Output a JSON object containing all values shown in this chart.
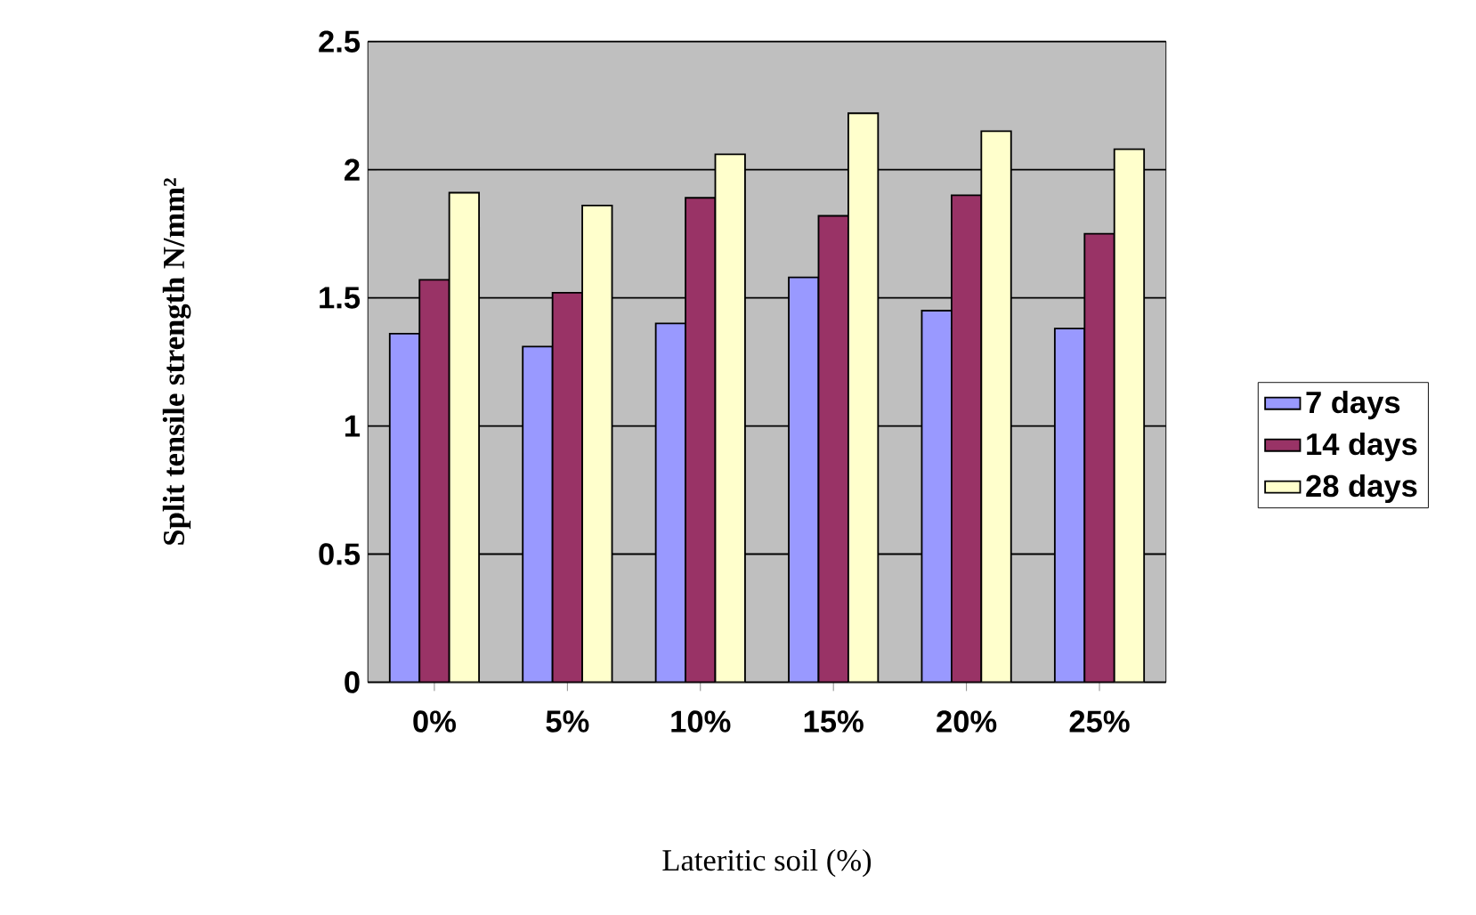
{
  "chart_data": {
    "type": "bar",
    "xlabel": "Lateritic soil (%)",
    "ylabel": "Split tensile  strength N/mm²",
    "categories": [
      "0%",
      "5%",
      "10%",
      "15%",
      "20%",
      "25%"
    ],
    "series": [
      {
        "name": "7 days",
        "color": "#9999ff",
        "values": [
          1.36,
          1.31,
          1.4,
          1.58,
          1.45,
          1.38
        ]
      },
      {
        "name": "14 days",
        "color": "#993366",
        "values": [
          1.57,
          1.52,
          1.89,
          1.82,
          1.9,
          1.75
        ]
      },
      {
        "name": "28 days",
        "color": "#ffffcc",
        "values": [
          1.91,
          1.86,
          2.06,
          2.22,
          2.15,
          2.08
        ]
      }
    ],
    "ylim": [
      0,
      2.5
    ],
    "yticks": [
      0,
      0.5,
      1,
      1.5,
      2,
      2.5
    ],
    "grid": "y",
    "legend": "right"
  }
}
